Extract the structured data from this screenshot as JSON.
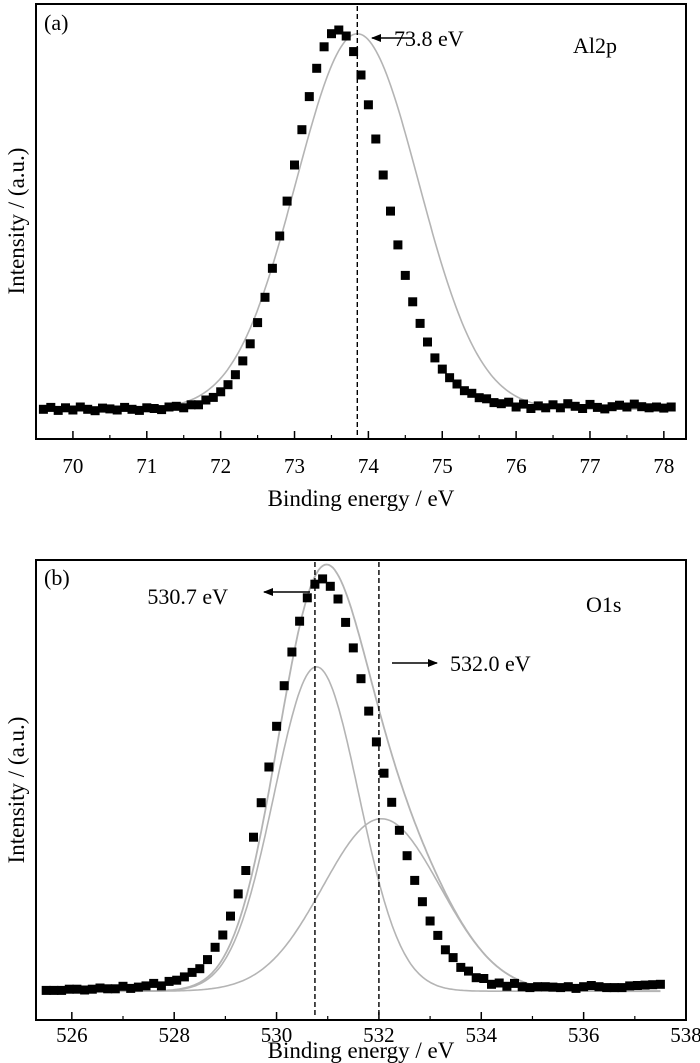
{
  "chart_data": [
    {
      "panel": "(a)",
      "type": "scatter",
      "element_label": "Al2p",
      "xlabel": "Binding energy / eV",
      "ylabel": "Intensity / (a.u.)",
      "xlim": [
        69.5,
        78.3
      ],
      "ylim": [
        -0.08,
        1.09
      ],
      "xticks": [
        "70",
        "71",
        "72",
        "73",
        "74",
        "75",
        "76",
        "77",
        "78"
      ],
      "annotations": [
        {
          "text": "73.8 eV",
          "x": 73.85,
          "arrow": "left"
        }
      ],
      "vlines": [
        73.85
      ],
      "series": [
        {
          "kind": "measured",
          "marker": "square",
          "color": "#000000",
          "x": [
            69.6,
            69.7,
            69.8,
            69.9,
            70.0,
            70.1,
            70.2,
            70.3,
            70.4,
            70.5,
            70.6,
            70.7,
            70.8,
            70.9,
            71.0,
            71.1,
            71.2,
            71.3,
            71.4,
            71.5,
            71.6,
            71.7,
            71.8,
            71.9,
            72.0,
            72.1,
            72.2,
            72.3,
            72.4,
            72.5,
            72.6,
            72.7,
            72.8,
            72.9,
            73.0,
            73.1,
            73.2,
            73.3,
            73.4,
            73.5,
            73.6,
            73.7,
            73.8,
            73.9,
            74.0,
            74.1,
            74.2,
            74.3,
            74.4,
            74.5,
            74.6,
            74.7,
            74.8,
            74.9,
            75.0,
            75.1,
            75.2,
            75.3,
            75.4,
            75.5,
            75.6,
            75.7,
            75.8,
            75.9,
            76.0,
            76.1,
            76.2,
            76.3,
            76.4,
            76.5,
            76.6,
            76.7,
            76.8,
            76.9,
            77.0,
            77.1,
            77.2,
            77.3,
            77.4,
            77.5,
            77.6,
            77.7,
            77.8,
            77.9,
            78.0,
            78.1
          ],
          "y": [
            0.0,
            0.005,
            -0.003,
            0.004,
            -0.002,
            0.006,
            0.0,
            -0.004,
            0.003,
            0.001,
            -0.002,
            0.005,
            0.0,
            -0.003,
            0.004,
            0.002,
            -0.001,
            0.006,
            0.008,
            0.004,
            0.012,
            0.012,
            0.025,
            0.032,
            0.047,
            0.066,
            0.093,
            0.13,
            0.176,
            0.233,
            0.301,
            0.379,
            0.466,
            0.56,
            0.657,
            0.752,
            0.841,
            0.917,
            0.975,
            1.01,
            1.02,
            1.004,
            0.962,
            0.899,
            0.819,
            0.727,
            0.63,
            0.533,
            0.442,
            0.36,
            0.289,
            0.231,
            0.181,
            0.138,
            0.108,
            0.085,
            0.068,
            0.05,
            0.043,
            0.031,
            0.028,
            0.018,
            0.015,
            0.019,
            0.006,
            0.014,
            0.002,
            0.009,
            0.004,
            0.012,
            0.004,
            0.015,
            0.008,
            0.002,
            0.013,
            0.005,
            0.001,
            0.007,
            0.011,
            0.006,
            0.014,
            0.007,
            0.004,
            0.006,
            0.003,
            0.006
          ]
        },
        {
          "kind": "fit",
          "marker": "line",
          "color": "#b4b4b4",
          "center": 73.85,
          "fwhm": 1.95,
          "amplitude": 1.01
        }
      ]
    },
    {
      "panel": "(b)",
      "type": "scatter",
      "element_label": "O1s",
      "xlabel": "Binding energy / eV",
      "ylabel": "Intensity / (a.u.)",
      "xlim": [
        525.3,
        538.0
      ],
      "ylim": [
        -0.07,
        1.05
      ],
      "xticks": [
        "526",
        "528",
        "530",
        "532",
        "534",
        "536",
        "538"
      ],
      "annotations": [
        {
          "text": "530.7 eV",
          "x": 530.75,
          "arrow": "left"
        },
        {
          "text": "532.0 eV",
          "x": 532.0,
          "arrow": "right"
        }
      ],
      "vlines": [
        530.75,
        532.0
      ],
      "series": [
        {
          "kind": "measured",
          "marker": "square",
          "color": "#000000",
          "x": [
            525.5,
            525.65,
            525.8,
            525.95,
            526.1,
            526.25,
            526.4,
            526.55,
            526.7,
            526.85,
            527.0,
            527.15,
            527.3,
            527.45,
            527.6,
            527.75,
            527.9,
            528.05,
            528.2,
            528.35,
            528.5,
            528.65,
            528.8,
            528.95,
            529.1,
            529.25,
            529.4,
            529.55,
            529.7,
            529.85,
            530.0,
            530.15,
            530.3,
            530.45,
            530.6,
            530.75,
            530.9,
            531.05,
            531.2,
            531.35,
            531.5,
            531.65,
            531.8,
            531.95,
            532.1,
            532.25,
            532.4,
            532.55,
            532.7,
            532.85,
            533.0,
            533.15,
            533.3,
            533.45,
            533.6,
            533.75,
            533.9,
            534.05,
            534.2,
            534.35,
            534.5,
            534.65,
            534.8,
            534.95,
            535.1,
            535.25,
            535.4,
            535.55,
            535.7,
            535.85,
            536.0,
            536.15,
            536.3,
            536.45,
            536.6,
            536.75,
            536.9,
            537.05,
            537.2,
            537.35,
            537.5
          ],
          "y": [
            0.002,
            0.002,
            0.002,
            0.005,
            0.005,
            0.003,
            0.005,
            0.008,
            0.006,
            0.006,
            0.012,
            0.007,
            0.01,
            0.013,
            0.019,
            0.013,
            0.024,
            0.027,
            0.035,
            0.046,
            0.055,
            0.077,
            0.107,
            0.137,
            0.183,
            0.237,
            0.294,
            0.375,
            0.459,
            0.546,
            0.645,
            0.744,
            0.826,
            0.901,
            0.958,
            0.991,
            1.004,
            0.986,
            0.955,
            0.898,
            0.836,
            0.761,
            0.682,
            0.607,
            0.531,
            0.46,
            0.392,
            0.33,
            0.27,
            0.218,
            0.171,
            0.136,
            0.101,
            0.082,
            0.058,
            0.049,
            0.033,
            0.031,
            0.017,
            0.02,
            0.012,
            0.019,
            0.011,
            0.009,
            0.011,
            0.011,
            0.01,
            0.009,
            0.011,
            0.007,
            0.011,
            0.014,
            0.011,
            0.009,
            0.009,
            0.009,
            0.013,
            0.014,
            0.015,
            0.016,
            0.017
          ]
        },
        {
          "kind": "fit-component",
          "marker": "line",
          "color": "#b4b4b4",
          "center": 530.78,
          "fwhm": 1.95,
          "amplitude": 0.79
        },
        {
          "kind": "fit-component",
          "marker": "line",
          "color": "#b4b4b4",
          "center": 532.05,
          "fwhm": 2.7,
          "amplitude": 0.42
        },
        {
          "kind": "fit-envelope",
          "marker": "line",
          "color": "#b4b4b4"
        }
      ]
    }
  ]
}
